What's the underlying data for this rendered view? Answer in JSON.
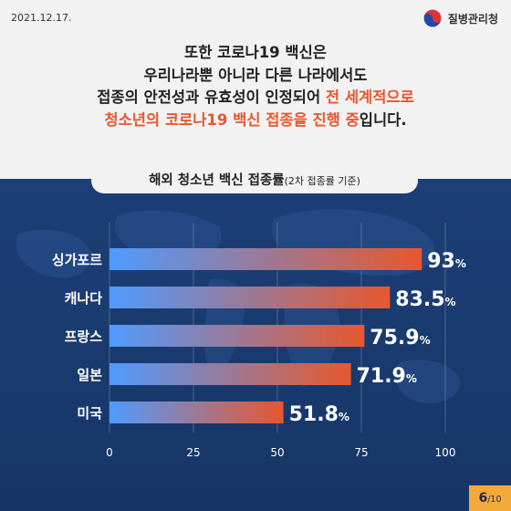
{
  "header": {
    "date": "2021.12.17.",
    "org_name": "질병관리청"
  },
  "headline": {
    "line1": "또한 코로나19 백신은",
    "line2": "우리나라뿐 아니라 다른 나라에서도",
    "line3_a": "접종의 안전성과 유효성이 인정되어 ",
    "line3_b": "전 세계적으로",
    "line4_a": "청소년의 코로나19 백신 접종을 진행 중",
    "line4_b": "입니다."
  },
  "chart_data": {
    "type": "bar",
    "orientation": "horizontal",
    "title": "해외 청소년 백신 접종률",
    "subtitle": "(2차 접종률 기준)",
    "categories": [
      "싱가포르",
      "캐나다",
      "프랑스",
      "일본",
      "미국"
    ],
    "values": [
      93,
      83.5,
      75.9,
      71.9,
      51.8
    ],
    "value_labels": [
      "93",
      "83.5",
      "75.9",
      "71.9",
      "51.8"
    ],
    "unit": "%",
    "xlim": [
      0,
      100
    ],
    "ticks": [
      "0",
      "25",
      "50",
      "75",
      "100"
    ],
    "grid": true,
    "bar_gradient": [
      "#4f9bff",
      "#e8572e"
    ]
  },
  "footer": {
    "page_current": "6",
    "page_total": "/10"
  }
}
